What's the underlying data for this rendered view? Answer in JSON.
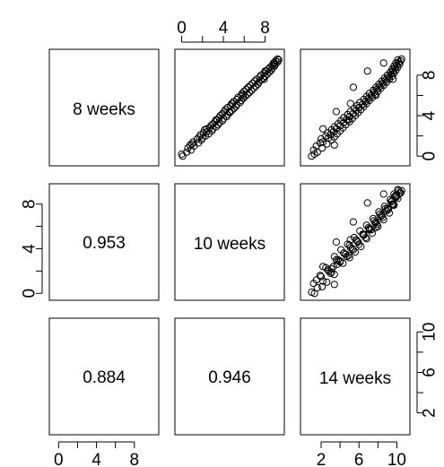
{
  "chart_data": {
    "type": "scatter",
    "variables": [
      "8 weeks",
      "10 weeks",
      "14 weeks"
    ],
    "ranges": {
      "8 weeks": [
        -0.6,
        10.2
      ],
      "10 weeks": [
        -0.3,
        9.5
      ],
      "14 weeks": [
        0.2,
        11.0
      ]
    },
    "ticks": {
      "8 weeks": [
        0,
        4,
        8
      ],
      "10 weeks": [
        0,
        4,
        8
      ],
      "14 weeks": [
        2,
        6,
        10
      ]
    },
    "minor_ticks": {
      "8 weeks": [
        2,
        6
      ],
      "10 weeks": [
        2,
        6
      ],
      "14 weeks": [
        4,
        8
      ]
    },
    "correlations": [
      {
        "pair": [
          "10 weeks",
          "8 weeks"
        ],
        "label": "0.953"
      },
      {
        "pair": [
          "14 weeks",
          "8 weeks"
        ],
        "label": "0.884"
      },
      {
        "pair": [
          "14 weeks",
          "10 weeks"
        ],
        "label": "0.946"
      }
    ],
    "points": {
      "8 weeks": [
        0.0,
        0.2,
        0.4,
        0.6,
        0.8,
        1.0,
        1.2,
        1.3,
        1.4,
        1.6,
        1.7,
        1.8,
        1.9,
        2.0,
        2.1,
        2.2,
        2.3,
        2.4,
        2.5,
        2.6,
        2.7,
        2.8,
        2.9,
        3.0,
        3.1,
        3.2,
        3.3,
        3.4,
        3.5,
        3.6,
        3.7,
        3.8,
        3.9,
        4.0,
        4.1,
        4.2,
        4.3,
        4.4,
        4.5,
        4.6,
        4.7,
        4.8,
        4.9,
        5.0,
        5.1,
        5.2,
        5.3,
        5.4,
        5.5,
        5.6,
        5.7,
        5.8,
        5.9,
        6.0,
        6.1,
        6.2,
        6.3,
        6.4,
        6.5,
        6.6,
        6.7,
        6.8,
        6.9,
        7.0,
        7.1,
        7.2,
        7.3,
        7.4,
        7.5,
        7.6,
        7.7,
        7.8,
        7.9,
        8.0,
        8.1,
        8.2,
        8.3,
        8.4,
        8.5,
        8.6,
        8.7,
        8.8,
        8.9,
        9.0,
        9.1,
        9.2,
        9.3,
        9.4,
        9.5,
        9.6,
        1.1,
        2.7,
        3.6,
        4.4,
        5.2,
        6.0,
        6.8,
        7.6,
        8.4,
        9.2
      ],
      "10 weeks": [
        0.1,
        0.0,
        0.5,
        0.9,
        0.6,
        1.2,
        1.0,
        1.6,
        1.1,
        1.9,
        1.5,
        2.0,
        1.7,
        2.3,
        1.8,
        2.6,
        2.1,
        2.4,
        2.9,
        2.2,
        3.0,
        2.7,
        3.3,
        2.8,
        3.5,
        3.0,
        3.6,
        3.2,
        3.9,
        3.3,
        4.0,
        3.6,
        4.3,
        3.7,
        4.4,
        3.9,
        4.6,
        4.1,
        4.8,
        4.2,
        5.0,
        4.4,
        5.2,
        4.7,
        5.3,
        4.9,
        5.6,
        5.0,
        5.7,
        5.3,
        5.9,
        5.4,
        6.1,
        5.7,
        6.3,
        5.8,
        6.5,
        6.0,
        6.7,
        6.2,
        6.9,
        6.4,
        7.1,
        6.6,
        7.3,
        6.8,
        7.4,
        7.0,
        7.6,
        7.2,
        7.8,
        7.5,
        8.0,
        7.6,
        8.2,
        7.9,
        8.4,
        8.0,
        8.6,
        8.3,
        8.7,
        8.5,
        8.9,
        8.7,
        9.0,
        8.8,
        9.2,
        9.0,
        9.3,
        9.2,
        0.8,
        2.4,
        3.4,
        4.6,
        4.8,
        5.9,
        6.4,
        7.9,
        8.1,
        8.9
      ],
      "14 weeks": [
        1.0,
        1.3,
        1.6,
        1.2,
        2.1,
        1.5,
        2.6,
        1.9,
        2.2,
        3.1,
        2.0,
        2.8,
        3.4,
        2.5,
        3.0,
        3.7,
        2.7,
        3.3,
        4.0,
        3.1,
        3.6,
        4.3,
        3.4,
        4.0,
        4.6,
        3.8,
        4.4,
        5.0,
        4.1,
        4.7,
        5.3,
        4.4,
        5.0,
        5.6,
        4.8,
        5.4,
        5.9,
        5.1,
        5.7,
        6.2,
        5.5,
        6.0,
        6.5,
        5.8,
        6.4,
        6.8,
        6.1,
        6.7,
        7.1,
        6.5,
        7.0,
        7.4,
        6.8,
        7.3,
        7.7,
        7.1,
        7.6,
        8.0,
        7.5,
        7.9,
        8.3,
        7.8,
        8.2,
        8.6,
        8.1,
        8.5,
        8.9,
        8.4,
        8.8,
        9.2,
        8.7,
        9.1,
        9.5,
        9.0,
        9.4,
        9.7,
        9.3,
        9.6,
        9.9,
        9.5,
        9.8,
        10.1,
        9.7,
        10.0,
        10.3,
        9.9,
        10.2,
        10.4,
        10.1,
        10.5,
        3.4,
        2.2,
        4.9,
        3.6,
        5.1,
        7.8,
        5.4,
        9.6,
        6.9,
        8.6
      ]
    }
  }
}
